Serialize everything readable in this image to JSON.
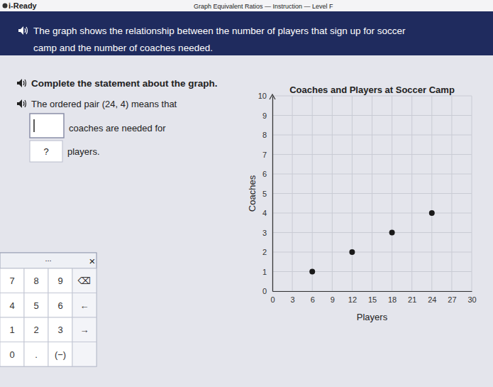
{
  "header": {
    "brand": "i-Ready",
    "title": "Graph Equivalent Ratios — Instruction — Level F"
  },
  "banner": {
    "lines": [
      "The graph shows the relationship between the number of players that sign up for soccer",
      "camp and the number of coaches needed."
    ]
  },
  "prompt": {
    "instruction": "Complete the statement about the graph.",
    "statement": "The ordered pair (24, 4) means that",
    "after_first_box": "coaches are needed for",
    "second_box": "?",
    "after_second_box": "players."
  },
  "keypad": {
    "menu": "...",
    "close": "×",
    "keys": [
      [
        "7",
        "8",
        "9",
        "⌫"
      ],
      [
        "4",
        "5",
        "6",
        "←"
      ],
      [
        "1",
        "2",
        "3",
        "→"
      ],
      [
        "0",
        ".",
        "(−)"
      ]
    ]
  },
  "chart_data": {
    "type": "scatter",
    "title": "Coaches and Players at Soccer Camp",
    "x_label": "Players",
    "y_label": "Coaches",
    "x": [
      6,
      12,
      18,
      24
    ],
    "values": [
      1,
      2,
      3,
      4
    ],
    "color": "#1a1a1a",
    "marker": "circle",
    "xlim": [
      0,
      30
    ],
    "ylim": [
      0,
      10
    ],
    "xticks": [
      0,
      3,
      6,
      9,
      12,
      15,
      18,
      21,
      24,
      27,
      30
    ],
    "yticks": [
      0,
      1,
      2,
      3,
      4,
      5,
      6,
      7,
      8,
      9,
      10
    ],
    "grid": true
  }
}
